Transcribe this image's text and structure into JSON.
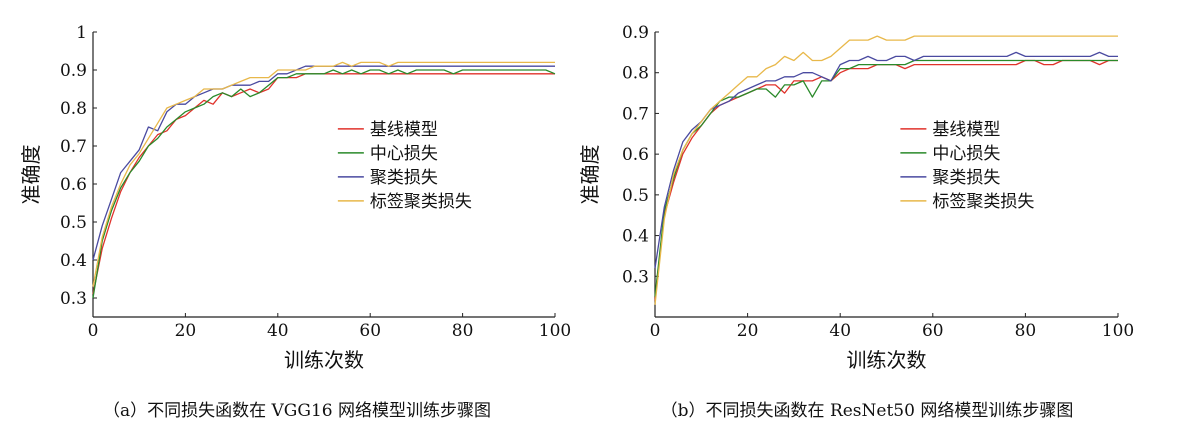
{
  "chart_data": [
    {
      "type": "line",
      "title": "",
      "caption": "（a）不同损失函数在 VGG16 网络模型训练步骤图",
      "xlabel": "训练次数",
      "ylabel": "准确度",
      "xlim": [
        0,
        100
      ],
      "ylim": [
        0.25,
        1.0
      ],
      "xticks": [
        "0",
        "20",
        "40",
        "60",
        "80",
        "100"
      ],
      "yticks": [
        "0.3",
        "0.4",
        "0.5",
        "0.6",
        "0.7",
        "0.8",
        "0.9",
        "1"
      ],
      "legend_position": "center-right",
      "x": [
        0,
        2,
        4,
        6,
        8,
        10,
        12,
        14,
        16,
        18,
        20,
        22,
        24,
        26,
        28,
        30,
        32,
        34,
        36,
        38,
        40,
        42,
        44,
        46,
        48,
        50,
        52,
        54,
        56,
        58,
        60,
        62,
        64,
        66,
        68,
        70,
        72,
        74,
        76,
        78,
        80,
        82,
        84,
        86,
        88,
        90,
        92,
        94,
        96,
        98,
        100
      ],
      "series": [
        {
          "name": "基线模型",
          "color": "#e0322b",
          "values": [
            0.31,
            0.43,
            0.51,
            0.58,
            0.63,
            0.67,
            0.7,
            0.73,
            0.74,
            0.77,
            0.78,
            0.8,
            0.82,
            0.81,
            0.84,
            0.83,
            0.84,
            0.85,
            0.84,
            0.85,
            0.88,
            0.88,
            0.88,
            0.89,
            0.89,
            0.89,
            0.89,
            0.89,
            0.89,
            0.89,
            0.89,
            0.89,
            0.89,
            0.89,
            0.89,
            0.89,
            0.89,
            0.89,
            0.89,
            0.89,
            0.89,
            0.89,
            0.89,
            0.89,
            0.89,
            0.89,
            0.89,
            0.89,
            0.89,
            0.89,
            0.89
          ]
        },
        {
          "name": "中心损失",
          "color": "#2a8a2a",
          "values": [
            0.3,
            0.45,
            0.53,
            0.59,
            0.63,
            0.66,
            0.7,
            0.72,
            0.75,
            0.77,
            0.79,
            0.8,
            0.81,
            0.83,
            0.84,
            0.83,
            0.85,
            0.83,
            0.84,
            0.86,
            0.88,
            0.88,
            0.89,
            0.89,
            0.89,
            0.89,
            0.9,
            0.89,
            0.9,
            0.89,
            0.9,
            0.9,
            0.89,
            0.9,
            0.89,
            0.9,
            0.9,
            0.9,
            0.9,
            0.89,
            0.9,
            0.9,
            0.9,
            0.9,
            0.9,
            0.9,
            0.9,
            0.9,
            0.9,
            0.9,
            0.89
          ]
        },
        {
          "name": "聚类损失",
          "color": "#4a4aa0",
          "values": [
            0.4,
            0.49,
            0.56,
            0.63,
            0.66,
            0.69,
            0.75,
            0.74,
            0.79,
            0.81,
            0.81,
            0.83,
            0.84,
            0.85,
            0.85,
            0.86,
            0.86,
            0.86,
            0.87,
            0.87,
            0.89,
            0.89,
            0.9,
            0.91,
            0.91,
            0.91,
            0.91,
            0.91,
            0.91,
            0.91,
            0.91,
            0.91,
            0.91,
            0.91,
            0.91,
            0.91,
            0.91,
            0.91,
            0.91,
            0.91,
            0.91,
            0.91,
            0.91,
            0.91,
            0.91,
            0.91,
            0.91,
            0.91,
            0.91,
            0.91,
            0.91
          ]
        },
        {
          "name": "标签聚类损失",
          "color": "#e8b84a",
          "values": [
            0.33,
            0.46,
            0.54,
            0.6,
            0.65,
            0.68,
            0.72,
            0.76,
            0.8,
            0.81,
            0.82,
            0.83,
            0.85,
            0.85,
            0.85,
            0.86,
            0.87,
            0.88,
            0.88,
            0.88,
            0.9,
            0.9,
            0.9,
            0.9,
            0.91,
            0.91,
            0.91,
            0.92,
            0.91,
            0.92,
            0.92,
            0.92,
            0.91,
            0.92,
            0.92,
            0.92,
            0.92,
            0.92,
            0.92,
            0.92,
            0.92,
            0.92,
            0.92,
            0.92,
            0.92,
            0.92,
            0.92,
            0.92,
            0.92,
            0.92,
            0.92
          ]
        }
      ]
    },
    {
      "type": "line",
      "title": "",
      "caption": "（b）不同损失函数在 ResNet50 网络模型训练步骤图",
      "xlabel": "训练次数",
      "ylabel": "准确度",
      "xlim": [
        0,
        100
      ],
      "ylim": [
        0.2,
        0.9
      ],
      "xticks": [
        "0",
        "20",
        "40",
        "60",
        "80",
        "100"
      ],
      "yticks": [
        "0.3",
        "0.4",
        "0.5",
        "0.6",
        "0.7",
        "0.8",
        "0.9"
      ],
      "legend_position": "center-right",
      "x": [
        0,
        2,
        4,
        6,
        8,
        10,
        12,
        14,
        16,
        18,
        20,
        22,
        24,
        26,
        28,
        30,
        32,
        34,
        36,
        38,
        40,
        42,
        44,
        46,
        48,
        50,
        52,
        54,
        56,
        58,
        60,
        62,
        64,
        66,
        68,
        70,
        72,
        74,
        76,
        78,
        80,
        82,
        84,
        86,
        88,
        90,
        92,
        94,
        96,
        98,
        100
      ],
      "series": [
        {
          "name": "基线模型",
          "color": "#e0322b",
          "values": [
            0.24,
            0.45,
            0.53,
            0.6,
            0.64,
            0.67,
            0.7,
            0.72,
            0.73,
            0.74,
            0.75,
            0.76,
            0.77,
            0.77,
            0.75,
            0.78,
            0.78,
            0.78,
            0.79,
            0.78,
            0.8,
            0.81,
            0.81,
            0.81,
            0.82,
            0.82,
            0.82,
            0.81,
            0.82,
            0.82,
            0.82,
            0.82,
            0.82,
            0.82,
            0.82,
            0.82,
            0.82,
            0.82,
            0.82,
            0.82,
            0.83,
            0.83,
            0.82,
            0.82,
            0.83,
            0.83,
            0.83,
            0.83,
            0.82,
            0.83,
            0.83
          ]
        },
        {
          "name": "中心损失",
          "color": "#2a8a2a",
          "values": [
            0.25,
            0.46,
            0.54,
            0.61,
            0.65,
            0.67,
            0.7,
            0.73,
            0.74,
            0.74,
            0.75,
            0.76,
            0.76,
            0.74,
            0.77,
            0.77,
            0.78,
            0.74,
            0.78,
            0.78,
            0.81,
            0.81,
            0.82,
            0.82,
            0.82,
            0.82,
            0.82,
            0.82,
            0.83,
            0.83,
            0.83,
            0.83,
            0.83,
            0.83,
            0.83,
            0.83,
            0.83,
            0.83,
            0.83,
            0.83,
            0.83,
            0.83,
            0.83,
            0.83,
            0.83,
            0.83,
            0.83,
            0.83,
            0.83,
            0.83,
            0.83
          ]
        },
        {
          "name": "聚类损失",
          "color": "#4a4aa0",
          "values": [
            0.32,
            0.47,
            0.56,
            0.63,
            0.66,
            0.68,
            0.71,
            0.72,
            0.73,
            0.75,
            0.76,
            0.77,
            0.78,
            0.78,
            0.79,
            0.79,
            0.8,
            0.8,
            0.79,
            0.78,
            0.82,
            0.83,
            0.83,
            0.84,
            0.83,
            0.83,
            0.84,
            0.84,
            0.83,
            0.84,
            0.84,
            0.84,
            0.84,
            0.84,
            0.84,
            0.84,
            0.84,
            0.84,
            0.84,
            0.85,
            0.84,
            0.84,
            0.84,
            0.84,
            0.84,
            0.84,
            0.84,
            0.84,
            0.85,
            0.84,
            0.84
          ]
        },
        {
          "name": "标签聚类损失",
          "color": "#e8b84a",
          "values": [
            0.23,
            0.44,
            0.55,
            0.61,
            0.65,
            0.68,
            0.71,
            0.73,
            0.75,
            0.77,
            0.79,
            0.79,
            0.81,
            0.82,
            0.84,
            0.83,
            0.85,
            0.83,
            0.83,
            0.84,
            0.86,
            0.88,
            0.88,
            0.88,
            0.89,
            0.88,
            0.88,
            0.88,
            0.89,
            0.89,
            0.89,
            0.89,
            0.89,
            0.89,
            0.89,
            0.89,
            0.89,
            0.89,
            0.89,
            0.89,
            0.89,
            0.89,
            0.89,
            0.89,
            0.89,
            0.89,
            0.89,
            0.89,
            0.89,
            0.89,
            0.89
          ]
        }
      ]
    }
  ]
}
